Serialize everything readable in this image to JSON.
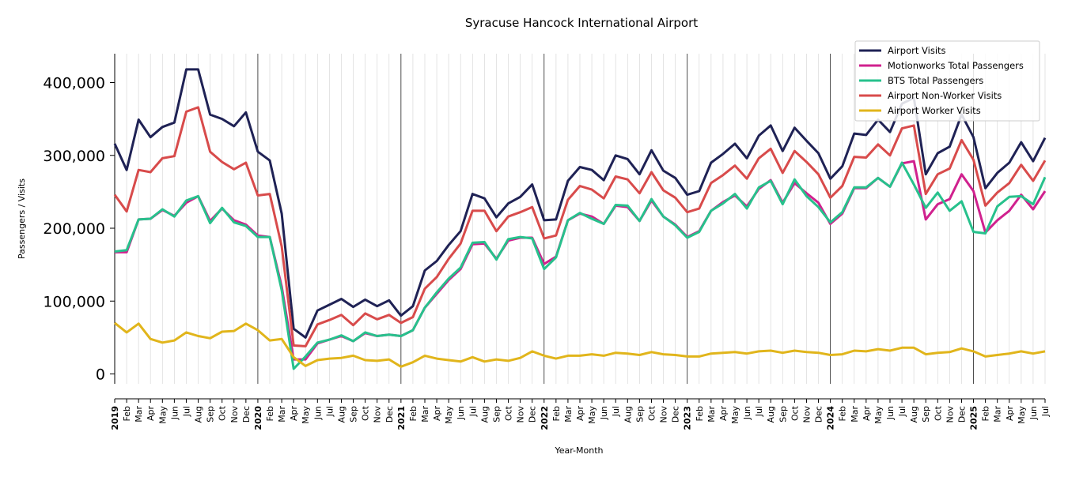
{
  "chart_data": {
    "type": "line",
    "title": "Syracuse Hancock International Airport",
    "xlabel": "Year-Month",
    "ylabel": "Passengers / Visits",
    "ylim": [
      -35000,
      440000
    ],
    "yticks": [
      0,
      100000,
      200000,
      300000,
      400000
    ],
    "ytick_labels": [
      "0",
      "100,000",
      "200,000",
      "300,000",
      "400,000"
    ],
    "grid": "vertical monthly lines, darker year boundaries",
    "legend_position": "top-right",
    "x": [
      "2019-01",
      "2019-02",
      "2019-03",
      "2019-04",
      "2019-05",
      "2019-06",
      "2019-07",
      "2019-08",
      "2019-09",
      "2019-10",
      "2019-11",
      "2019-12",
      "2020-01",
      "2020-02",
      "2020-03",
      "2020-04",
      "2020-05",
      "2020-06",
      "2020-07",
      "2020-08",
      "2020-09",
      "2020-10",
      "2020-11",
      "2020-12",
      "2021-01",
      "2021-02",
      "2021-03",
      "2021-04",
      "2021-05",
      "2021-06",
      "2021-07",
      "2021-08",
      "2021-09",
      "2021-10",
      "2021-11",
      "2021-12",
      "2022-01",
      "2022-02",
      "2022-03",
      "2022-04",
      "2022-05",
      "2022-06",
      "2022-07",
      "2022-08",
      "2022-09",
      "2022-10",
      "2022-11",
      "2022-12",
      "2023-01",
      "2023-02",
      "2023-03",
      "2023-04",
      "2023-05",
      "2023-06",
      "2023-07",
      "2023-08",
      "2023-09",
      "2023-10",
      "2023-11",
      "2023-12",
      "2024-01",
      "2024-02",
      "2024-03",
      "2024-04",
      "2024-05",
      "2024-06",
      "2024-07",
      "2024-08",
      "2024-09",
      "2024-10",
      "2024-11",
      "2024-12",
      "2025-01",
      "2025-02",
      "2025-03",
      "2025-04",
      "2025-05",
      "2025-06",
      "2025-07"
    ],
    "x_tick_labels": [
      "2019",
      "Feb",
      "Mar",
      "Apr",
      "May",
      "Jun",
      "Jul",
      "Aug",
      "Sep",
      "Oct",
      "Nov",
      "Dec",
      "2020",
      "Feb",
      "Mar",
      "Apr",
      "May",
      "Jun",
      "Jul",
      "Aug",
      "Sep",
      "Oct",
      "Nov",
      "Dec",
      "2021",
      "Feb",
      "Mar",
      "Apr",
      "May",
      "Jun",
      "Jul",
      "Aug",
      "Sep",
      "Oct",
      "Nov",
      "Dec",
      "2022",
      "Feb",
      "Mar",
      "Apr",
      "May",
      "Jun",
      "Jul",
      "Aug",
      "Sep",
      "Oct",
      "Nov",
      "Dec",
      "2023",
      "Feb",
      "Mar",
      "Apr",
      "May",
      "Jun",
      "Jul",
      "Aug",
      "Sep",
      "Oct",
      "Nov",
      "Dec",
      "2024",
      "Feb",
      "Mar",
      "Apr",
      "May",
      "Jun",
      "Jul",
      "Aug",
      "Sep",
      "Oct",
      "Nov",
      "Dec",
      "2025",
      "Feb",
      "Mar",
      "Apr",
      "May",
      "Jun",
      "Jul"
    ],
    "series": [
      {
        "name": "Airport Visits",
        "color": "#1f2255",
        "values": [
          316000,
          280000,
          349000,
          325000,
          339000,
          345000,
          418000,
          418000,
          356000,
          350000,
          340000,
          359000,
          305000,
          293000,
          220000,
          62000,
          50000,
          87000,
          95000,
          103000,
          92000,
          102000,
          93000,
          101000,
          80000,
          93000,
          142000,
          155000,
          177000,
          196000,
          247000,
          241000,
          215000,
          234000,
          243000,
          260000,
          211000,
          212000,
          265000,
          284000,
          280000,
          266000,
          300000,
          295000,
          274000,
          307000,
          279000,
          269000,
          246000,
          251000,
          290000,
          302000,
          316000,
          296000,
          327000,
          341000,
          306000,
          338000,
          320000,
          303000,
          268000,
          285000,
          330000,
          328000,
          349000,
          332000,
          371000,
          379000,
          274000,
          303000,
          312000,
          356000,
          325000,
          255000,
          276000,
          290000,
          318000,
          292000,
          324000
        ]
      },
      {
        "name": "Motionworks Total Passengers",
        "color": "#d0218e",
        "values": [
          167000,
          167000,
          212000,
          213000,
          225000,
          217000,
          235000,
          244000,
          210000,
          227000,
          211000,
          205000,
          190000,
          188000,
          120000,
          20000,
          20000,
          42000,
          47000,
          52000,
          45000,
          56000,
          52000,
          54000,
          52000,
          60000,
          91000,
          110000,
          129000,
          144000,
          178000,
          179000,
          158000,
          183000,
          187000,
          187000,
          151000,
          161000,
          211000,
          220000,
          216000,
          206000,
          231000,
          229000,
          210000,
          238000,
          216000,
          205000,
          188000,
          196000,
          224000,
          236000,
          245000,
          230000,
          254000,
          266000,
          235000,
          262000,
          248000,
          235000,
          206000,
          220000,
          255000,
          255000,
          269000,
          257000,
          289000,
          292000,
          212000,
          233000,
          240000,
          274000,
          251000,
          194000,
          211000,
          224000,
          246000,
          226000,
          251000
        ]
      },
      {
        "name": "BTS Total Passengers",
        "color": "#27c18c",
        "values": [
          168000,
          170000,
          212000,
          213000,
          226000,
          216000,
          238000,
          244000,
          207000,
          228000,
          208000,
          203000,
          188000,
          188000,
          115000,
          7000,
          24000,
          43000,
          47000,
          53000,
          45000,
          57000,
          52000,
          54000,
          52000,
          60000,
          91000,
          112000,
          131000,
          146000,
          180000,
          181000,
          157000,
          185000,
          188000,
          186000,
          144000,
          160000,
          211000,
          221000,
          213000,
          206000,
          232000,
          231000,
          210000,
          240000,
          216000,
          204000,
          187000,
          195000,
          224000,
          234000,
          247000,
          227000,
          256000,
          265000,
          233000,
          267000,
          244000,
          229000,
          208000,
          222000,
          256000,
          256000,
          269000,
          257000,
          290000,
          260000,
          228000,
          249000,
          224000,
          237000,
          195000,
          193000,
          230000,
          243000,
          244000,
          233000,
          270000
        ]
      },
      {
        "name": "Airport Non-Worker Visits",
        "color": "#d84b4b",
        "values": [
          246000,
          223000,
          280000,
          277000,
          296000,
          299000,
          360000,
          366000,
          305000,
          291000,
          281000,
          290000,
          245000,
          247000,
          175000,
          39000,
          38000,
          68000,
          74000,
          81000,
          67000,
          83000,
          75000,
          81000,
          70000,
          78000,
          117000,
          133000,
          158000,
          179000,
          224000,
          224000,
          196000,
          216000,
          222000,
          229000,
          186000,
          190000,
          239000,
          258000,
          253000,
          241000,
          271000,
          267000,
          248000,
          277000,
          252000,
          242000,
          222000,
          227000,
          262000,
          273000,
          286000,
          268000,
          296000,
          309000,
          276000,
          306000,
          291000,
          274000,
          242000,
          258000,
          298000,
          297000,
          315000,
          300000,
          337000,
          341000,
          247000,
          274000,
          282000,
          321000,
          294000,
          231000,
          249000,
          262000,
          287000,
          265000,
          293000
        ]
      },
      {
        "name": "Airport Worker Visits",
        "color": "#e1b51b",
        "values": [
          70000,
          57000,
          69000,
          48000,
          43000,
          46000,
          57000,
          52000,
          49000,
          58000,
          59000,
          69000,
          60000,
          46000,
          48000,
          23000,
          11000,
          19000,
          21000,
          22000,
          25000,
          19000,
          18000,
          20000,
          10000,
          16000,
          25000,
          21000,
          19000,
          17000,
          23000,
          17000,
          20000,
          18000,
          22000,
          31000,
          25000,
          21000,
          25000,
          25000,
          27000,
          25000,
          29000,
          28000,
          26000,
          30000,
          27000,
          26000,
          24000,
          24000,
          28000,
          29000,
          30000,
          28000,
          31000,
          32000,
          29000,
          32000,
          30000,
          29000,
          26000,
          27000,
          32000,
          31000,
          34000,
          32000,
          36000,
          36000,
          27000,
          29000,
          30000,
          35000,
          31000,
          24000,
          26000,
          28000,
          31000,
          28000,
          31000
        ]
      }
    ]
  }
}
